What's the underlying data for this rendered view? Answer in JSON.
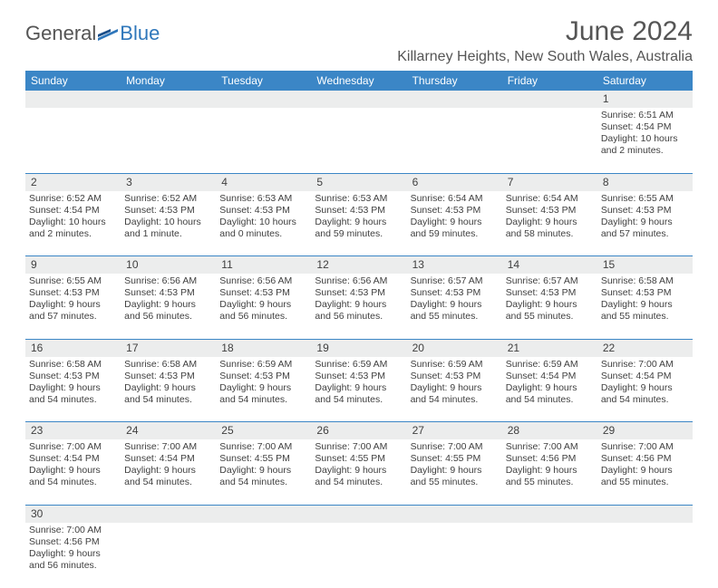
{
  "logo": {
    "general": "General",
    "blue": "Blue"
  },
  "title": "June 2024",
  "location": "Killarney Heights, New South Wales, Australia",
  "colors": {
    "header_bg": "#3b86c6",
    "header_text": "#ffffff",
    "daynum_bg": "#eceded",
    "divider": "#3b86c6",
    "body_text": "#404040",
    "title_text": "#555555",
    "logo_blue": "#2f77bb"
  },
  "dayHeaders": [
    "Sunday",
    "Monday",
    "Tuesday",
    "Wednesday",
    "Thursday",
    "Friday",
    "Saturday"
  ],
  "weeks": [
    [
      null,
      null,
      null,
      null,
      null,
      null,
      {
        "n": "1",
        "sr": "Sunrise: 6:51 AM",
        "ss": "Sunset: 4:54 PM",
        "d1": "Daylight: 10 hours",
        "d2": "and 2 minutes."
      }
    ],
    [
      {
        "n": "2",
        "sr": "Sunrise: 6:52 AM",
        "ss": "Sunset: 4:54 PM",
        "d1": "Daylight: 10 hours",
        "d2": "and 2 minutes."
      },
      {
        "n": "3",
        "sr": "Sunrise: 6:52 AM",
        "ss": "Sunset: 4:53 PM",
        "d1": "Daylight: 10 hours",
        "d2": "and 1 minute."
      },
      {
        "n": "4",
        "sr": "Sunrise: 6:53 AM",
        "ss": "Sunset: 4:53 PM",
        "d1": "Daylight: 10 hours",
        "d2": "and 0 minutes."
      },
      {
        "n": "5",
        "sr": "Sunrise: 6:53 AM",
        "ss": "Sunset: 4:53 PM",
        "d1": "Daylight: 9 hours",
        "d2": "and 59 minutes."
      },
      {
        "n": "6",
        "sr": "Sunrise: 6:54 AM",
        "ss": "Sunset: 4:53 PM",
        "d1": "Daylight: 9 hours",
        "d2": "and 59 minutes."
      },
      {
        "n": "7",
        "sr": "Sunrise: 6:54 AM",
        "ss": "Sunset: 4:53 PM",
        "d1": "Daylight: 9 hours",
        "d2": "and 58 minutes."
      },
      {
        "n": "8",
        "sr": "Sunrise: 6:55 AM",
        "ss": "Sunset: 4:53 PM",
        "d1": "Daylight: 9 hours",
        "d2": "and 57 minutes."
      }
    ],
    [
      {
        "n": "9",
        "sr": "Sunrise: 6:55 AM",
        "ss": "Sunset: 4:53 PM",
        "d1": "Daylight: 9 hours",
        "d2": "and 57 minutes."
      },
      {
        "n": "10",
        "sr": "Sunrise: 6:56 AM",
        "ss": "Sunset: 4:53 PM",
        "d1": "Daylight: 9 hours",
        "d2": "and 56 minutes."
      },
      {
        "n": "11",
        "sr": "Sunrise: 6:56 AM",
        "ss": "Sunset: 4:53 PM",
        "d1": "Daylight: 9 hours",
        "d2": "and 56 minutes."
      },
      {
        "n": "12",
        "sr": "Sunrise: 6:56 AM",
        "ss": "Sunset: 4:53 PM",
        "d1": "Daylight: 9 hours",
        "d2": "and 56 minutes."
      },
      {
        "n": "13",
        "sr": "Sunrise: 6:57 AM",
        "ss": "Sunset: 4:53 PM",
        "d1": "Daylight: 9 hours",
        "d2": "and 55 minutes."
      },
      {
        "n": "14",
        "sr": "Sunrise: 6:57 AM",
        "ss": "Sunset: 4:53 PM",
        "d1": "Daylight: 9 hours",
        "d2": "and 55 minutes."
      },
      {
        "n": "15",
        "sr": "Sunrise: 6:58 AM",
        "ss": "Sunset: 4:53 PM",
        "d1": "Daylight: 9 hours",
        "d2": "and 55 minutes."
      }
    ],
    [
      {
        "n": "16",
        "sr": "Sunrise: 6:58 AM",
        "ss": "Sunset: 4:53 PM",
        "d1": "Daylight: 9 hours",
        "d2": "and 54 minutes."
      },
      {
        "n": "17",
        "sr": "Sunrise: 6:58 AM",
        "ss": "Sunset: 4:53 PM",
        "d1": "Daylight: 9 hours",
        "d2": "and 54 minutes."
      },
      {
        "n": "18",
        "sr": "Sunrise: 6:59 AM",
        "ss": "Sunset: 4:53 PM",
        "d1": "Daylight: 9 hours",
        "d2": "and 54 minutes."
      },
      {
        "n": "19",
        "sr": "Sunrise: 6:59 AM",
        "ss": "Sunset: 4:53 PM",
        "d1": "Daylight: 9 hours",
        "d2": "and 54 minutes."
      },
      {
        "n": "20",
        "sr": "Sunrise: 6:59 AM",
        "ss": "Sunset: 4:53 PM",
        "d1": "Daylight: 9 hours",
        "d2": "and 54 minutes."
      },
      {
        "n": "21",
        "sr": "Sunrise: 6:59 AM",
        "ss": "Sunset: 4:54 PM",
        "d1": "Daylight: 9 hours",
        "d2": "and 54 minutes."
      },
      {
        "n": "22",
        "sr": "Sunrise: 7:00 AM",
        "ss": "Sunset: 4:54 PM",
        "d1": "Daylight: 9 hours",
        "d2": "and 54 minutes."
      }
    ],
    [
      {
        "n": "23",
        "sr": "Sunrise: 7:00 AM",
        "ss": "Sunset: 4:54 PM",
        "d1": "Daylight: 9 hours",
        "d2": "and 54 minutes."
      },
      {
        "n": "24",
        "sr": "Sunrise: 7:00 AM",
        "ss": "Sunset: 4:54 PM",
        "d1": "Daylight: 9 hours",
        "d2": "and 54 minutes."
      },
      {
        "n": "25",
        "sr": "Sunrise: 7:00 AM",
        "ss": "Sunset: 4:55 PM",
        "d1": "Daylight: 9 hours",
        "d2": "and 54 minutes."
      },
      {
        "n": "26",
        "sr": "Sunrise: 7:00 AM",
        "ss": "Sunset: 4:55 PM",
        "d1": "Daylight: 9 hours",
        "d2": "and 54 minutes."
      },
      {
        "n": "27",
        "sr": "Sunrise: 7:00 AM",
        "ss": "Sunset: 4:55 PM",
        "d1": "Daylight: 9 hours",
        "d2": "and 55 minutes."
      },
      {
        "n": "28",
        "sr": "Sunrise: 7:00 AM",
        "ss": "Sunset: 4:56 PM",
        "d1": "Daylight: 9 hours",
        "d2": "and 55 minutes."
      },
      {
        "n": "29",
        "sr": "Sunrise: 7:00 AM",
        "ss": "Sunset: 4:56 PM",
        "d1": "Daylight: 9 hours",
        "d2": "and 55 minutes."
      }
    ],
    [
      {
        "n": "30",
        "sr": "Sunrise: 7:00 AM",
        "ss": "Sunset: 4:56 PM",
        "d1": "Daylight: 9 hours",
        "d2": "and 56 minutes."
      },
      null,
      null,
      null,
      null,
      null,
      null
    ]
  ]
}
